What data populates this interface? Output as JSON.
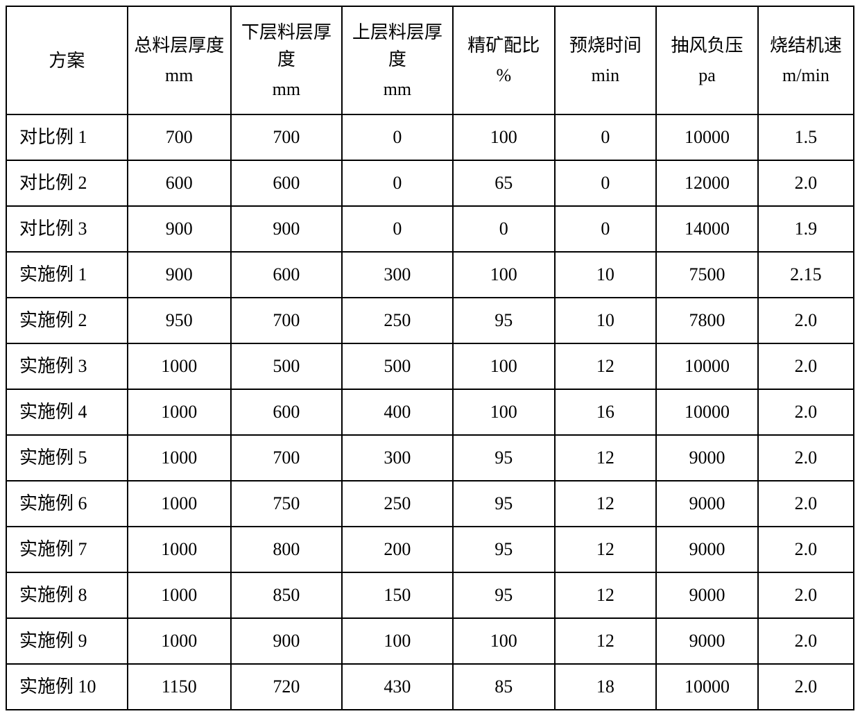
{
  "table": {
    "columns": [
      {
        "label": "方案",
        "unit": ""
      },
      {
        "label": "总料层厚度",
        "unit": "mm"
      },
      {
        "label": "下层料层厚度",
        "unit": "mm"
      },
      {
        "label": "上层料层厚度",
        "unit": "mm"
      },
      {
        "label": "精矿配比",
        "unit": "%"
      },
      {
        "label": "预烧时间",
        "unit": "min"
      },
      {
        "label": "抽风负压",
        "unit": "pa"
      },
      {
        "label": "烧结机速",
        "unit": "m/min"
      }
    ],
    "rows": [
      {
        "label": "对比例 1",
        "cells": [
          "700",
          "700",
          "0",
          "100",
          "0",
          "10000",
          "1.5"
        ]
      },
      {
        "label": "对比例 2",
        "cells": [
          "600",
          "600",
          "0",
          "65",
          "0",
          "12000",
          "2.0"
        ]
      },
      {
        "label": "对比例 3",
        "cells": [
          "900",
          "900",
          "0",
          "0",
          "0",
          "14000",
          "1.9"
        ]
      },
      {
        "label": "实施例 1",
        "cells": [
          "900",
          "600",
          "300",
          "100",
          "10",
          "7500",
          "2.15"
        ]
      },
      {
        "label": "实施例 2",
        "cells": [
          "950",
          "700",
          "250",
          "95",
          "10",
          "7800",
          "2.0"
        ]
      },
      {
        "label": "实施例 3",
        "cells": [
          "1000",
          "500",
          "500",
          "100",
          "12",
          "10000",
          "2.0"
        ]
      },
      {
        "label": "实施例 4",
        "cells": [
          "1000",
          "600",
          "400",
          "100",
          "16",
          "10000",
          "2.0"
        ]
      },
      {
        "label": "实施例 5",
        "cells": [
          "1000",
          "700",
          "300",
          "95",
          "12",
          "9000",
          "2.0"
        ]
      },
      {
        "label": "实施例 6",
        "cells": [
          "1000",
          "750",
          "250",
          "95",
          "12",
          "9000",
          "2.0"
        ]
      },
      {
        "label": "实施例 7",
        "cells": [
          "1000",
          "800",
          "200",
          "95",
          "12",
          "9000",
          "2.0"
        ]
      },
      {
        "label": "实施例 8",
        "cells": [
          "1000",
          "850",
          "150",
          "95",
          "12",
          "9000",
          "2.0"
        ]
      },
      {
        "label": "实施例 9",
        "cells": [
          "1000",
          "900",
          "100",
          "100",
          "12",
          "9000",
          "2.0"
        ]
      },
      {
        "label": "实施例 10",
        "cells": [
          "1150",
          "720",
          "430",
          "85",
          "18",
          "10000",
          "2.0"
        ]
      }
    ],
    "styling": {
      "border_color": "#000000",
      "border_width": 2,
      "background_color": "#ffffff",
      "font_family": "SimSun",
      "header_fontsize": 26,
      "cell_fontsize": 26,
      "header_row_height": 156,
      "data_row_height": 66,
      "column_widths_pct": [
        14.3,
        12.2,
        13.1,
        13.1,
        12.0,
        12.0,
        12.0,
        11.3
      ],
      "text_align_header": "center",
      "text_align_firstcol": "left",
      "text_align_data": "center"
    }
  }
}
